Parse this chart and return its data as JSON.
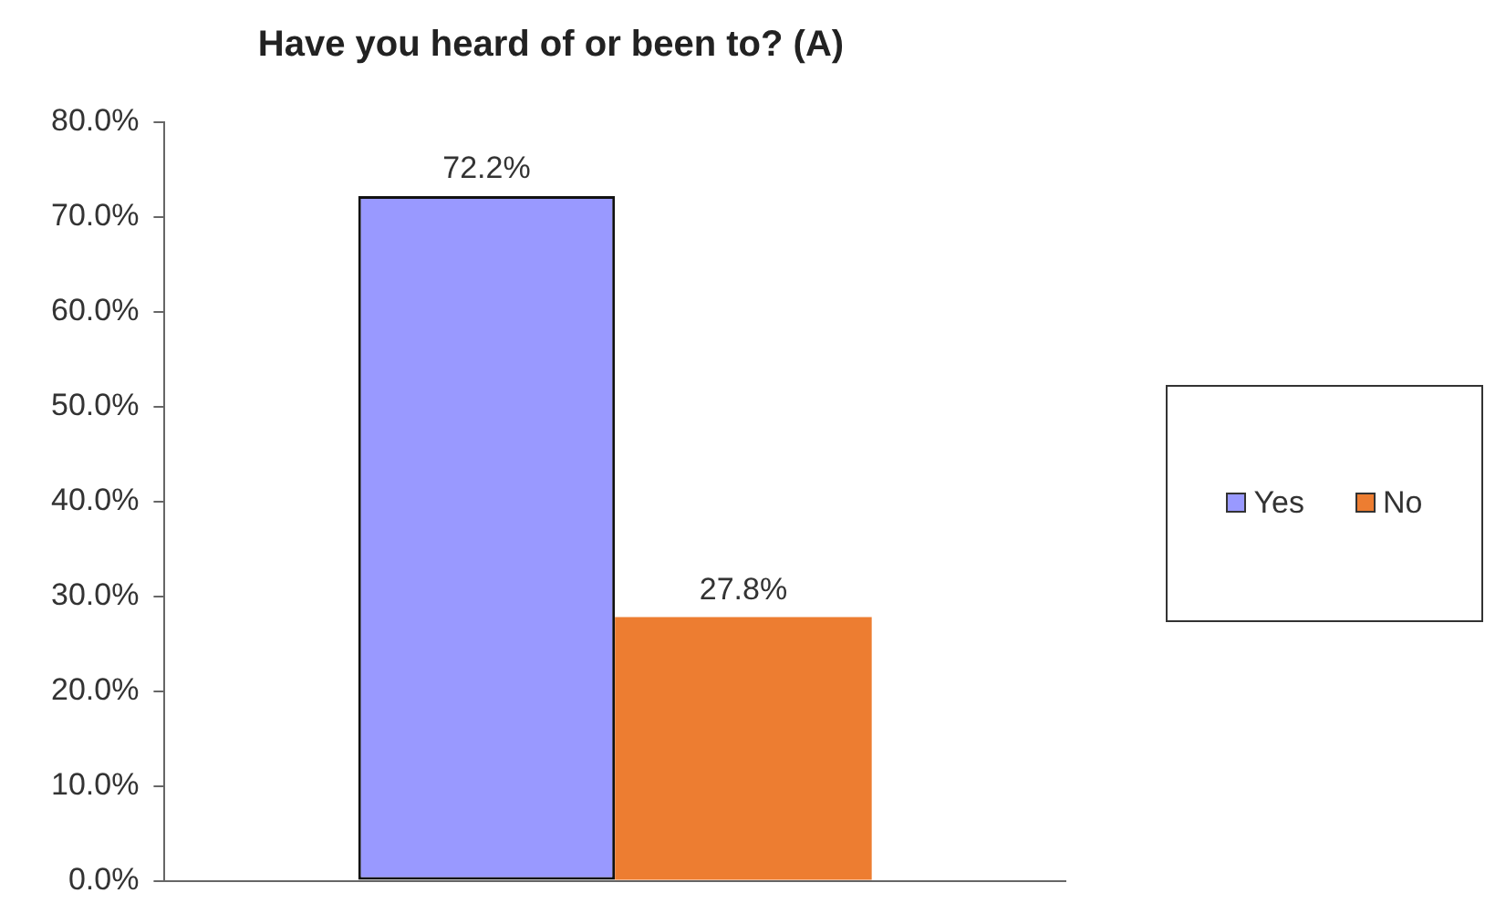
{
  "chart_data": {
    "type": "bar",
    "title": "Have you heard of or been to? (A)",
    "categories": [
      null
    ],
    "series": [
      {
        "name": "Yes",
        "color": "#9999ff",
        "values": [
          72.2
        ],
        "value_labels": [
          "72.2%"
        ]
      },
      {
        "name": "No",
        "color": "#ed7d31",
        "values": [
          27.8
        ],
        "value_labels": [
          "27.8%"
        ]
      }
    ],
    "ylim": [
      0,
      80
    ],
    "yticks": [
      {
        "value": 0,
        "label": "0.0%"
      },
      {
        "value": 10,
        "label": "10.0%"
      },
      {
        "value": 20,
        "label": "20.0%"
      },
      {
        "value": 30,
        "label": "30.0%"
      },
      {
        "value": 40,
        "label": "40.0%"
      },
      {
        "value": 50,
        "label": "50.0%"
      },
      {
        "value": 60,
        "label": "60.0%"
      },
      {
        "value": 70,
        "label": "70.0%"
      },
      {
        "value": 80,
        "label": "80.0%"
      }
    ],
    "grid": false,
    "legend": "right"
  }
}
